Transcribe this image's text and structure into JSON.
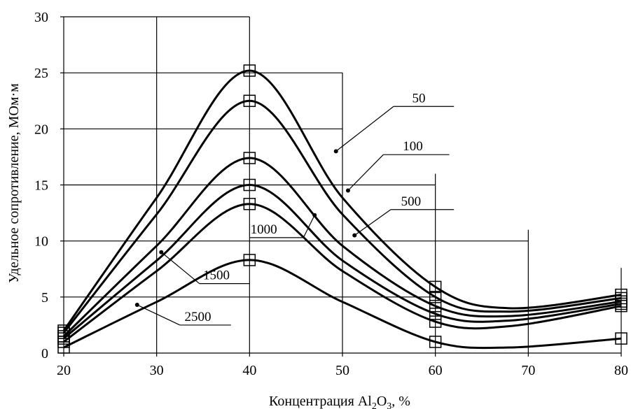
{
  "chart_data": {
    "type": "line",
    "xlabel": "Концентрация Al",
    "xlabel_sub1": "2",
    "xlabel_mid": "O",
    "xlabel_sub2": "3",
    "xlabel_tail": ", %",
    "ylabel": "Удельное сопротивление, МОм·м",
    "xlim": [
      20,
      80
    ],
    "ylim": [
      0,
      30
    ],
    "x_ticks": [
      20,
      30,
      40,
      50,
      60,
      70,
      80
    ],
    "y_ticks": [
      0,
      5,
      10,
      15,
      20,
      25,
      30
    ],
    "x": [
      20,
      40,
      60,
      80
    ],
    "grid": true,
    "legend": "inline labels with leader lines",
    "series": [
      {
        "name": "50",
        "values": [
          2.0,
          25.2,
          5.9,
          5.2
        ]
      },
      {
        "name": "100",
        "values": [
          1.8,
          22.5,
          5.0,
          4.9
        ]
      },
      {
        "name": "500",
        "values": [
          1.5,
          17.4,
          4.2,
          4.6
        ]
      },
      {
        "name": "1000",
        "values": [
          1.3,
          15.0,
          3.5,
          4.4
        ]
      },
      {
        "name": "1500",
        "values": [
          1.0,
          13.3,
          2.8,
          4.2
        ]
      },
      {
        "name": "2500",
        "values": [
          0.5,
          8.3,
          1.0,
          1.3
        ]
      }
    ]
  }
}
